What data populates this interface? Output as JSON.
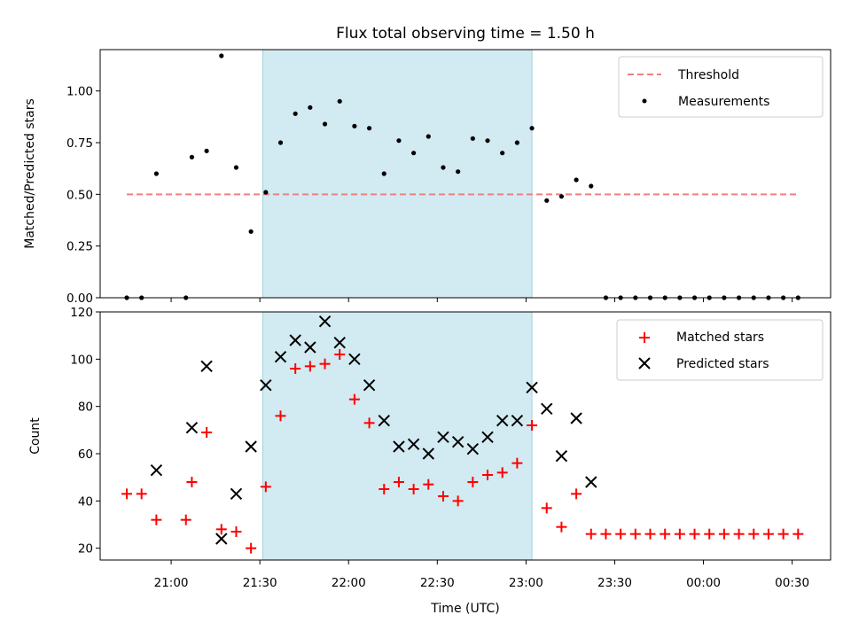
{
  "chart_data": [
    {
      "type": "scatter",
      "title": "Flux total observing time = 1.50 h",
      "xlabel": "",
      "ylabel": "Matched/Predicted stars",
      "ylim": [
        0,
        1.2
      ],
      "yticks": [
        "0.00",
        "0.25",
        "0.50",
        "0.75",
        "1.00"
      ],
      "highlight_span": [
        "21:31",
        "23:02"
      ],
      "highlight_color": "#add8e6",
      "legend_position": "upper right",
      "threshold": {
        "name": "Threshold",
        "value": 0.5,
        "x_start": "20:45",
        "x_end": "00:32",
        "color": "#f08080"
      },
      "series": [
        {
          "name": "Measurements",
          "color": "#000000",
          "marker": "dot",
          "points": [
            {
              "x": "20:45",
              "y": 0.0
            },
            {
              "x": "20:50",
              "y": 0.0
            },
            {
              "x": "20:55",
              "y": 0.6
            },
            {
              "x": "21:05",
              "y": 0.0
            },
            {
              "x": "21:07",
              "y": 0.68
            },
            {
              "x": "21:12",
              "y": 0.71
            },
            {
              "x": "21:17",
              "y": 1.17
            },
            {
              "x": "21:22",
              "y": 0.63
            },
            {
              "x": "21:27",
              "y": 0.32
            },
            {
              "x": "21:32",
              "y": 0.51
            },
            {
              "x": "21:37",
              "y": 0.75
            },
            {
              "x": "21:42",
              "y": 0.89
            },
            {
              "x": "21:47",
              "y": 0.92
            },
            {
              "x": "21:52",
              "y": 0.84
            },
            {
              "x": "21:57",
              "y": 0.95
            },
            {
              "x": "22:02",
              "y": 0.83
            },
            {
              "x": "22:07",
              "y": 0.82
            },
            {
              "x": "22:12",
              "y": 0.6
            },
            {
              "x": "22:17",
              "y": 0.76
            },
            {
              "x": "22:22",
              "y": 0.7
            },
            {
              "x": "22:27",
              "y": 0.78
            },
            {
              "x": "22:32",
              "y": 0.63
            },
            {
              "x": "22:37",
              "y": 0.61
            },
            {
              "x": "22:42",
              "y": 0.77
            },
            {
              "x": "22:47",
              "y": 0.76
            },
            {
              "x": "22:52",
              "y": 0.7
            },
            {
              "x": "22:57",
              "y": 0.75
            },
            {
              "x": "23:02",
              "y": 0.82
            },
            {
              "x": "23:07",
              "y": 0.47
            },
            {
              "x": "23:12",
              "y": 0.49
            },
            {
              "x": "23:17",
              "y": 0.57
            },
            {
              "x": "23:22",
              "y": 0.54
            },
            {
              "x": "23:27",
              "y": 0.0
            },
            {
              "x": "23:32",
              "y": 0.0
            },
            {
              "x": "23:37",
              "y": 0.0
            },
            {
              "x": "23:42",
              "y": 0.0
            },
            {
              "x": "23:47",
              "y": 0.0
            },
            {
              "x": "23:52",
              "y": 0.0
            },
            {
              "x": "23:57",
              "y": 0.0
            },
            {
              "x": "00:02",
              "y": 0.0
            },
            {
              "x": "00:07",
              "y": 0.0
            },
            {
              "x": "00:12",
              "y": 0.0
            },
            {
              "x": "00:17",
              "y": 0.0
            },
            {
              "x": "00:22",
              "y": 0.0
            },
            {
              "x": "00:27",
              "y": 0.0
            },
            {
              "x": "00:32",
              "y": 0.0
            }
          ]
        }
      ]
    },
    {
      "type": "scatter",
      "title": "",
      "xlabel": "Time (UTC)",
      "ylabel": "Count",
      "ylim": [
        15,
        120
      ],
      "yticks": [
        "20",
        "40",
        "60",
        "80",
        "100",
        "120"
      ],
      "xticks": [
        "21:00",
        "21:30",
        "22:00",
        "22:30",
        "23:00",
        "23:30",
        "00:00",
        "00:30"
      ],
      "highlight_span": [
        "21:31",
        "23:02"
      ],
      "highlight_color": "#add8e6",
      "legend_position": "upper right",
      "series": [
        {
          "name": "Matched stars",
          "color": "#ff0000",
          "marker": "plus",
          "points": [
            {
              "x": "20:45",
              "y": 43
            },
            {
              "x": "20:50",
              "y": 43
            },
            {
              "x": "20:55",
              "y": 32
            },
            {
              "x": "21:05",
              "y": 32
            },
            {
              "x": "21:07",
              "y": 48
            },
            {
              "x": "21:12",
              "y": 69
            },
            {
              "x": "21:17",
              "y": 28
            },
            {
              "x": "21:22",
              "y": 27
            },
            {
              "x": "21:27",
              "y": 20
            },
            {
              "x": "21:32",
              "y": 46
            },
            {
              "x": "21:37",
              "y": 76
            },
            {
              "x": "21:42",
              "y": 96
            },
            {
              "x": "21:47",
              "y": 97
            },
            {
              "x": "21:52",
              "y": 98
            },
            {
              "x": "21:57",
              "y": 102
            },
            {
              "x": "22:02",
              "y": 83
            },
            {
              "x": "22:07",
              "y": 73
            },
            {
              "x": "22:12",
              "y": 45
            },
            {
              "x": "22:17",
              "y": 48
            },
            {
              "x": "22:22",
              "y": 45
            },
            {
              "x": "22:27",
              "y": 47
            },
            {
              "x": "22:32",
              "y": 42
            },
            {
              "x": "22:37",
              "y": 40
            },
            {
              "x": "22:42",
              "y": 48
            },
            {
              "x": "22:47",
              "y": 51
            },
            {
              "x": "22:52",
              "y": 52
            },
            {
              "x": "22:57",
              "y": 56
            },
            {
              "x": "23:02",
              "y": 72
            },
            {
              "x": "23:07",
              "y": 37
            },
            {
              "x": "23:12",
              "y": 29
            },
            {
              "x": "23:17",
              "y": 43
            },
            {
              "x": "23:22",
              "y": 26
            },
            {
              "x": "23:27",
              "y": 26
            },
            {
              "x": "23:32",
              "y": 26
            },
            {
              "x": "23:37",
              "y": 26
            },
            {
              "x": "23:42",
              "y": 26
            },
            {
              "x": "23:47",
              "y": 26
            },
            {
              "x": "23:52",
              "y": 26
            },
            {
              "x": "23:57",
              "y": 26
            },
            {
              "x": "00:02",
              "y": 26
            },
            {
              "x": "00:07",
              "y": 26
            },
            {
              "x": "00:12",
              "y": 26
            },
            {
              "x": "00:17",
              "y": 26
            },
            {
              "x": "00:22",
              "y": 26
            },
            {
              "x": "00:27",
              "y": 26
            },
            {
              "x": "00:32",
              "y": 26
            }
          ]
        },
        {
          "name": "Predicted stars",
          "color": "#000000",
          "marker": "x",
          "points": [
            {
              "x": "20:55",
              "y": 53
            },
            {
              "x": "21:07",
              "y": 71
            },
            {
              "x": "21:12",
              "y": 97
            },
            {
              "x": "21:17",
              "y": 24
            },
            {
              "x": "21:22",
              "y": 43
            },
            {
              "x": "21:27",
              "y": 63
            },
            {
              "x": "21:32",
              "y": 89
            },
            {
              "x": "21:37",
              "y": 101
            },
            {
              "x": "21:42",
              "y": 108
            },
            {
              "x": "21:47",
              "y": 105
            },
            {
              "x": "21:52",
              "y": 116
            },
            {
              "x": "21:57",
              "y": 107
            },
            {
              "x": "22:02",
              "y": 100
            },
            {
              "x": "22:07",
              "y": 89
            },
            {
              "x": "22:12",
              "y": 74
            },
            {
              "x": "22:17",
              "y": 63
            },
            {
              "x": "22:22",
              "y": 64
            },
            {
              "x": "22:27",
              "y": 60
            },
            {
              "x": "22:32",
              "y": 67
            },
            {
              "x": "22:37",
              "y": 65
            },
            {
              "x": "22:42",
              "y": 62
            },
            {
              "x": "22:47",
              "y": 67
            },
            {
              "x": "22:52",
              "y": 74
            },
            {
              "x": "22:57",
              "y": 74
            },
            {
              "x": "23:02",
              "y": 88
            },
            {
              "x": "23:07",
              "y": 79
            },
            {
              "x": "23:12",
              "y": 59
            },
            {
              "x": "23:17",
              "y": 75
            },
            {
              "x": "23:22",
              "y": 48
            }
          ]
        }
      ]
    }
  ]
}
